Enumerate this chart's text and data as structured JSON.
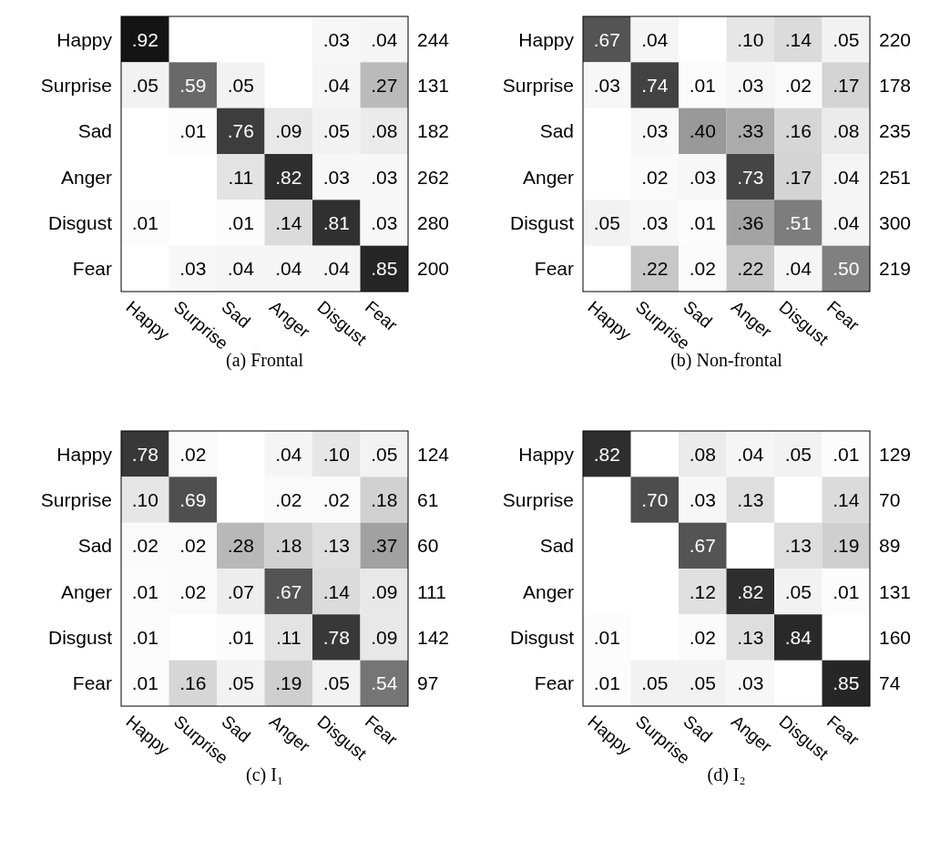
{
  "chart_data": [
    {
      "type": "heatmap",
      "title": "(a) Frontal",
      "categories": [
        "Happy",
        "Surprise",
        "Sad",
        "Anger",
        "Disgust",
        "Fear"
      ],
      "y_categories": [
        "Happy",
        "Surprise",
        "Sad",
        "Anger",
        "Disgust",
        "Fear"
      ],
      "y2_categories": [
        "244",
        "131",
        "182",
        "262",
        "280",
        "200"
      ],
      "cells": [
        [
          0.92,
          null,
          null,
          null,
          0.03,
          0.04
        ],
        [
          0.05,
          0.59,
          0.05,
          null,
          0.04,
          0.27
        ],
        [
          null,
          0.01,
          0.76,
          0.09,
          0.05,
          0.08
        ],
        [
          null,
          null,
          0.11,
          0.82,
          0.03,
          0.03
        ],
        [
          0.01,
          null,
          0.01,
          0.14,
          0.81,
          0.03
        ],
        [
          null,
          0.03,
          0.04,
          0.04,
          0.04,
          0.85
        ]
      ],
      "cell_labels": [
        [
          ".92",
          null,
          null,
          null,
          ".03",
          ".04"
        ],
        [
          ".05",
          ".59",
          ".05",
          null,
          ".04",
          ".27"
        ],
        [
          null,
          ".01",
          ".76",
          ".09",
          ".05",
          ".08"
        ],
        [
          null,
          null,
          ".11",
          ".82",
          ".03",
          ".03"
        ],
        [
          ".01",
          null,
          ".01",
          ".14",
          ".81",
          ".03"
        ],
        [
          null,
          ".03",
          ".04",
          ".04",
          ".04",
          ".85"
        ]
      ]
    },
    {
      "type": "heatmap",
      "title": "(b) Non-frontal",
      "categories": [
        "Happy",
        "Surprise",
        "Sad",
        "Anger",
        "Disgust",
        "Fear"
      ],
      "y_categories": [
        "Happy",
        "Surprise",
        "Sad",
        "Anger",
        "Disgust",
        "Fear"
      ],
      "y2_categories": [
        "220",
        "178",
        "235",
        "251",
        "300",
        "219"
      ],
      "cells": [
        [
          0.67,
          0.04,
          null,
          0.1,
          0.14,
          0.05
        ],
        [
          0.03,
          0.74,
          0.01,
          0.03,
          0.02,
          0.17
        ],
        [
          null,
          0.03,
          0.4,
          0.33,
          0.16,
          0.08
        ],
        [
          null,
          0.02,
          0.03,
          0.73,
          0.17,
          0.04
        ],
        [
          0.05,
          0.03,
          0.01,
          0.36,
          0.51,
          0.04
        ],
        [
          null,
          0.22,
          0.02,
          0.22,
          0.04,
          0.5
        ]
      ],
      "cell_labels": [
        [
          ".67",
          ".04",
          null,
          ".10",
          ".14",
          ".05"
        ],
        [
          ".03",
          ".74",
          ".01",
          ".03",
          ".02",
          ".17"
        ],
        [
          null,
          ".03",
          ".40",
          ".33",
          ".16",
          ".08"
        ],
        [
          null,
          ".02",
          ".03",
          ".73",
          ".17",
          ".04"
        ],
        [
          ".05",
          ".03",
          ".01",
          ".36",
          ".51",
          ".04"
        ],
        [
          null,
          ".22",
          ".02",
          ".22",
          ".04",
          ".50"
        ]
      ]
    },
    {
      "type": "heatmap",
      "title": "(c) I₁",
      "categories": [
        "Happy",
        "Surprise",
        "Sad",
        "Anger",
        "Disgust",
        "Fear"
      ],
      "y_categories": [
        "Happy",
        "Surprise",
        "Sad",
        "Anger",
        "Disgust",
        "Fear"
      ],
      "y2_categories": [
        "124",
        "61",
        "60",
        "111",
        "142",
        "97"
      ],
      "cells": [
        [
          0.78,
          0.02,
          null,
          0.04,
          0.1,
          0.05
        ],
        [
          0.1,
          0.69,
          null,
          0.02,
          0.02,
          0.18
        ],
        [
          0.02,
          0.02,
          0.28,
          0.18,
          0.13,
          0.37
        ],
        [
          0.01,
          0.02,
          0.07,
          0.67,
          0.14,
          0.09
        ],
        [
          0.01,
          null,
          0.01,
          0.11,
          0.78,
          0.09
        ],
        [
          0.01,
          0.16,
          0.05,
          0.19,
          0.05,
          0.54
        ]
      ],
      "cell_labels": [
        [
          ".78",
          ".02",
          null,
          ".04",
          ".10",
          ".05"
        ],
        [
          ".10",
          ".69",
          null,
          ".02",
          ".02",
          ".18"
        ],
        [
          ".02",
          ".02",
          ".28",
          ".18",
          ".13",
          ".37"
        ],
        [
          ".01",
          ".02",
          ".07",
          ".67",
          ".14",
          ".09"
        ],
        [
          ".01",
          null,
          ".01",
          ".11",
          ".78",
          ".09"
        ],
        [
          ".01",
          ".16",
          ".05",
          ".19",
          ".05",
          ".54"
        ]
      ]
    },
    {
      "type": "heatmap",
      "title": "(d) I₂",
      "categories": [
        "Happy",
        "Surprise",
        "Sad",
        "Anger",
        "Disgust",
        "Fear"
      ],
      "y_categories": [
        "Happy",
        "Surprise",
        "Sad",
        "Anger",
        "Disgust",
        "Fear"
      ],
      "y2_categories": [
        "129",
        "70",
        "89",
        "131",
        "160",
        "74"
      ],
      "cells": [
        [
          0.82,
          null,
          0.08,
          0.04,
          0.05,
          0.01
        ],
        [
          null,
          0.7,
          0.03,
          0.13,
          null,
          0.14
        ],
        [
          null,
          null,
          0.67,
          null,
          0.13,
          0.19
        ],
        [
          null,
          null,
          0.12,
          0.82,
          0.05,
          0.01
        ],
        [
          0.01,
          null,
          0.02,
          0.13,
          0.84,
          null
        ],
        [
          0.01,
          0.05,
          0.05,
          0.03,
          null,
          0.85
        ]
      ],
      "cell_labels": [
        [
          ".82",
          null,
          ".08",
          ".04",
          ".05",
          ".01"
        ],
        [
          null,
          ".70",
          ".03",
          ".13",
          null,
          ".14"
        ],
        [
          null,
          null,
          ".67",
          null,
          ".13",
          ".19"
        ],
        [
          null,
          null,
          ".12",
          ".82",
          ".05",
          ".01"
        ],
        [
          ".01",
          null,
          ".02",
          ".13",
          ".84",
          null
        ],
        [
          ".01",
          ".05",
          ".05",
          ".03",
          null,
          ".85"
        ]
      ]
    }
  ]
}
